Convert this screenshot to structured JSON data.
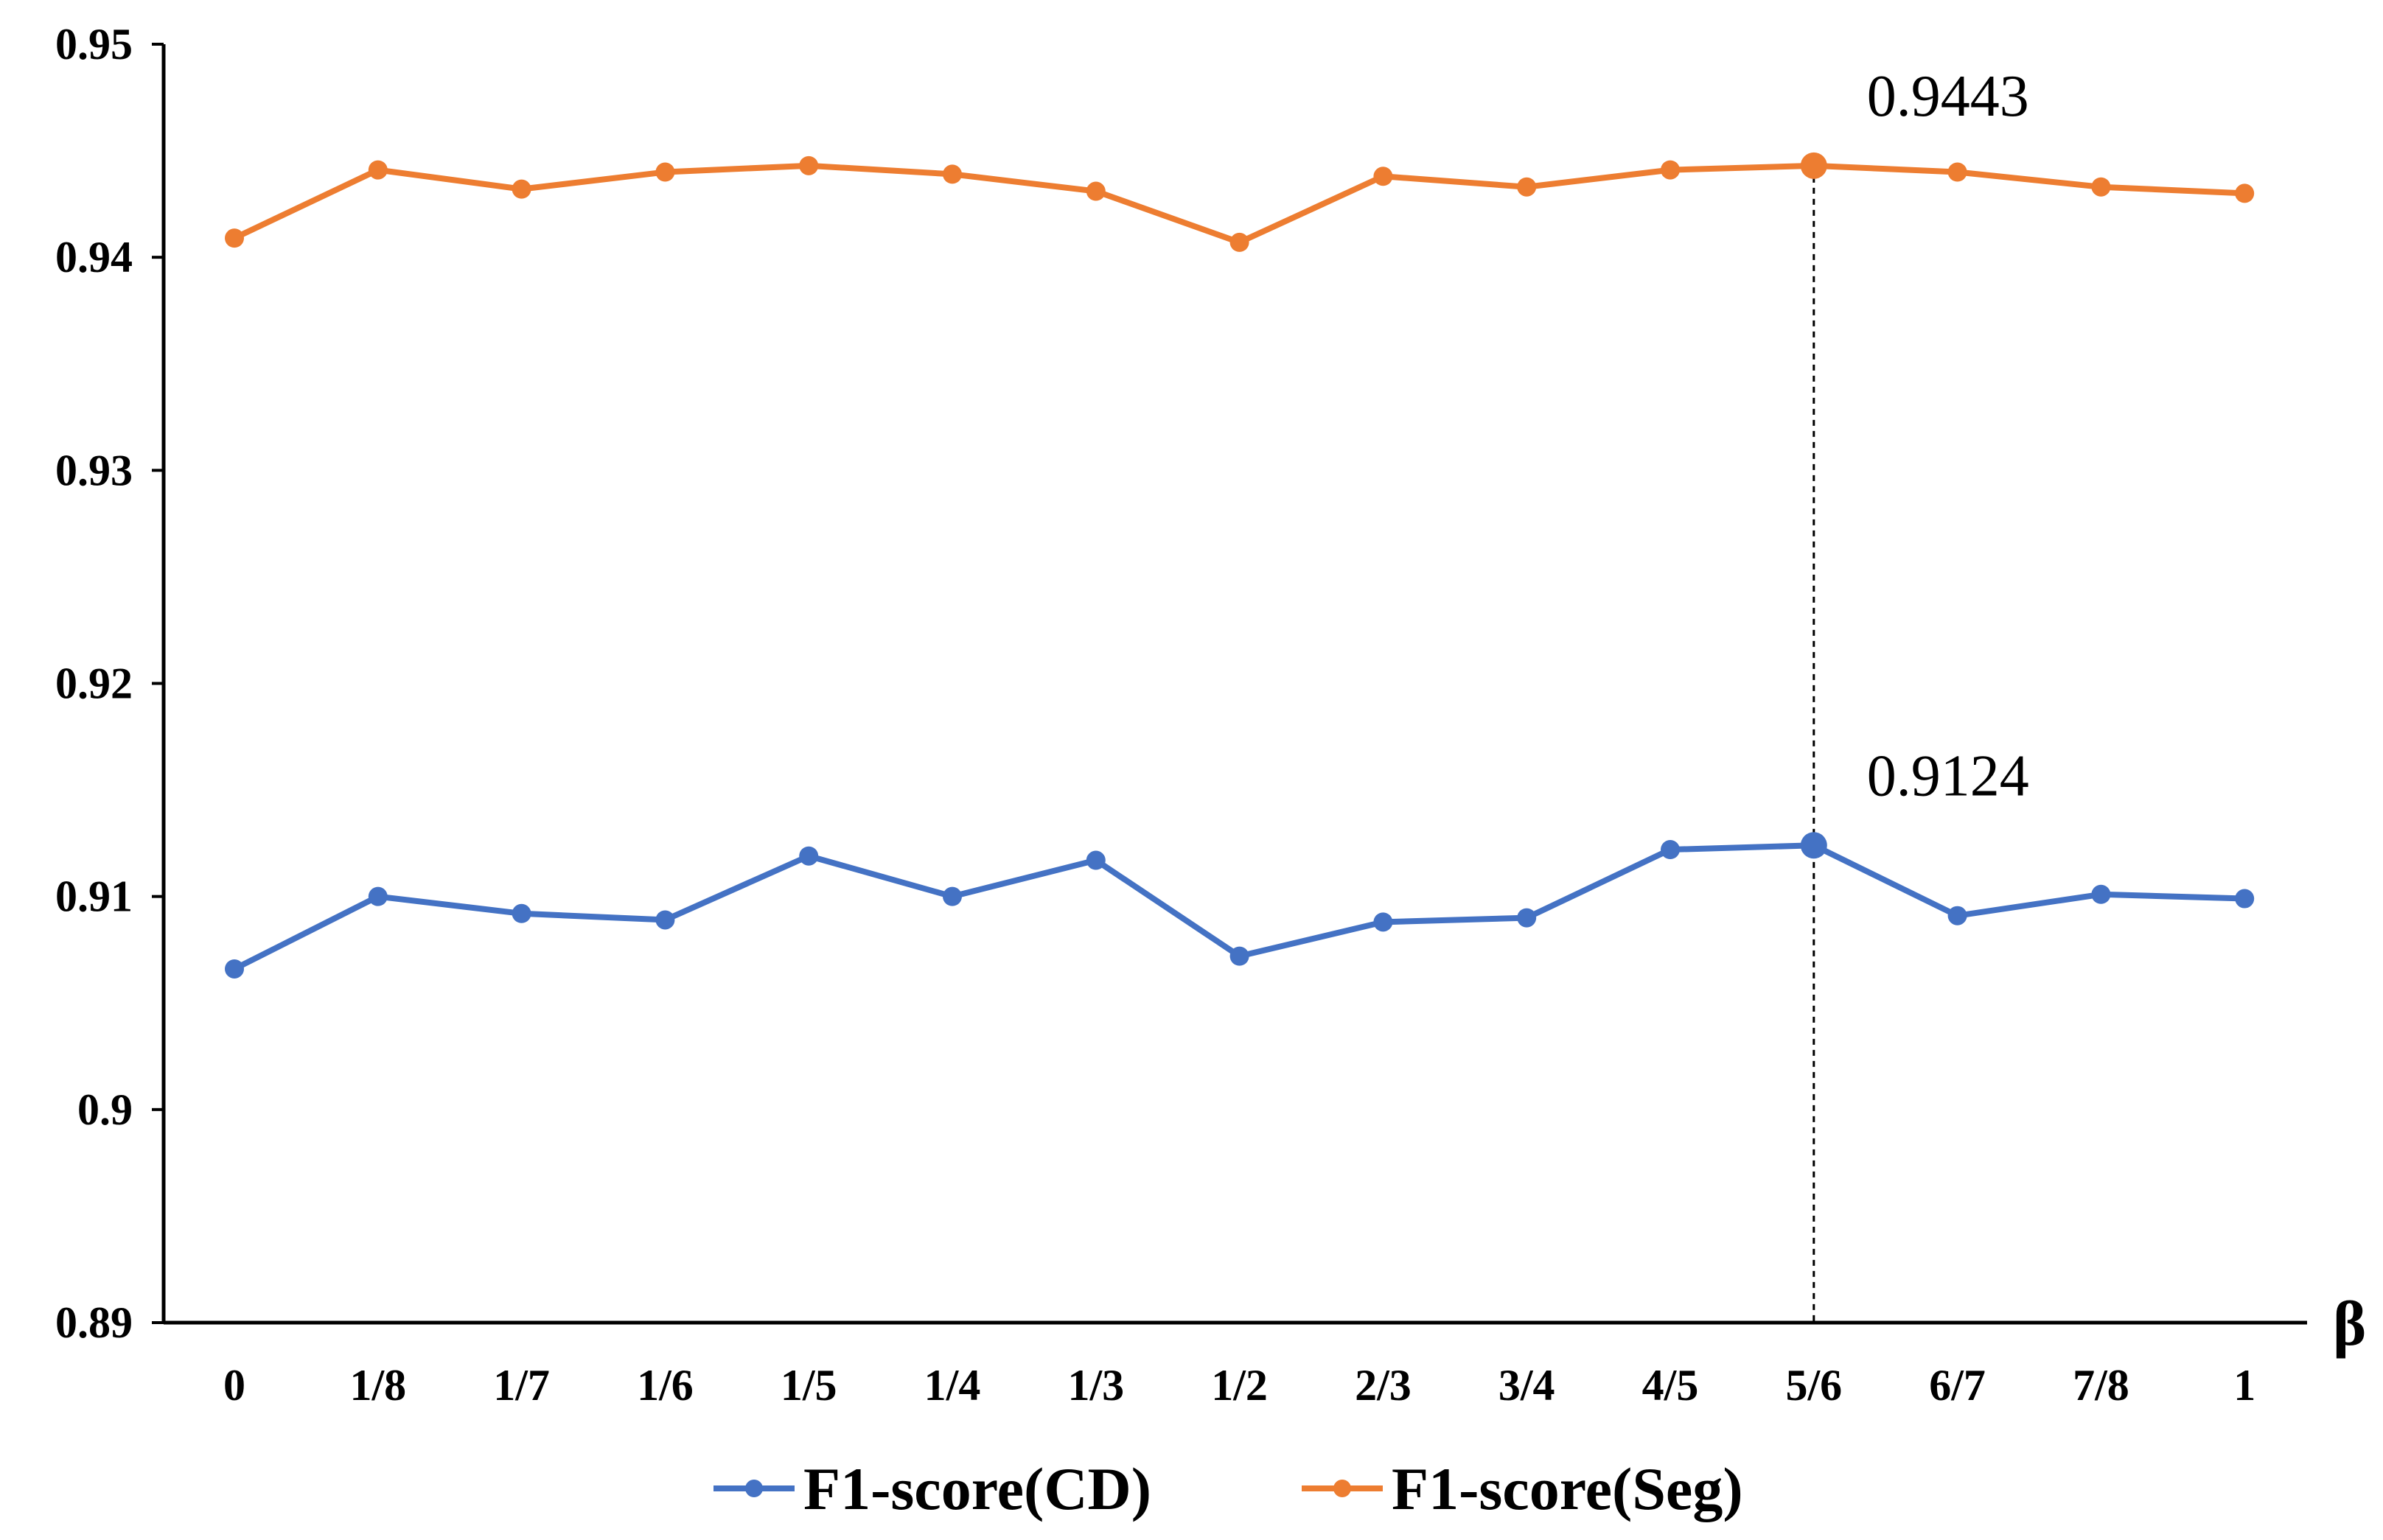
{
  "chart_data": {
    "type": "line",
    "title": "",
    "xlabel": "β",
    "ylabel": "",
    "categories": [
      "0",
      "1/8",
      "1/7",
      "1/6",
      "1/5",
      "1/4",
      "1/3",
      "1/2",
      "2/3",
      "3/4",
      "4/5",
      "5/6",
      "6/7",
      "7/8",
      "1"
    ],
    "ylim": [
      0.89,
      0.95
    ],
    "yticks": [
      0.89,
      0.9,
      0.91,
      0.92,
      0.93,
      0.94,
      0.95
    ],
    "ytick_labels": [
      "0.89",
      "0.9",
      "0.91",
      "0.92",
      "0.93",
      "0.94",
      "0.95"
    ],
    "grid": false,
    "legend_position": "bottom",
    "series": [
      {
        "name": "F1-score(CD)",
        "color": "#4472C4",
        "values": [
          0.9066,
          0.91,
          0.9092,
          0.9089,
          0.9119,
          0.91,
          0.9117,
          0.9072,
          0.9088,
          0.909,
          0.9122,
          0.9124,
          0.9091,
          0.9101,
          0.9099
        ]
      },
      {
        "name": "F1-score(Seg)",
        "color": "#ED7D31",
        "values": [
          0.9409,
          0.9441,
          0.9432,
          0.944,
          0.9443,
          0.9439,
          0.9431,
          0.9407,
          0.9438,
          0.9433,
          0.9441,
          0.9443,
          0.944,
          0.9433,
          0.943
        ]
      }
    ],
    "annotations": [
      {
        "series": "F1-score(Seg)",
        "category": "5/6",
        "text": "0.9443"
      },
      {
        "series": "F1-score(CD)",
        "category": "5/6",
        "text": "0.9124"
      }
    ],
    "highlight_category": "5/6"
  }
}
